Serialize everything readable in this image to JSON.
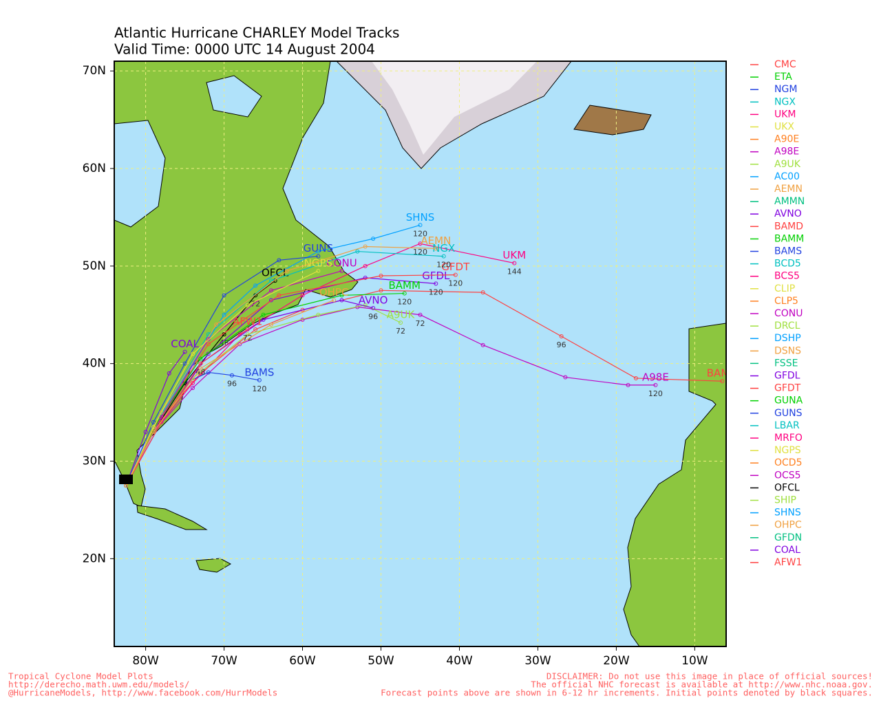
{
  "map": {
    "title": [
      "Atlantic Hurricane CHARLEY Model Tracks",
      "Valid Time: 0000 UTC 14 August 2004"
    ],
    "lon_range": [
      -84,
      -6
    ],
    "lat_range": [
      11,
      71
    ],
    "xticks": [
      {
        "value": -80,
        "label": "80W"
      },
      {
        "value": -70,
        "label": "70W"
      },
      {
        "value": -60,
        "label": "60W"
      },
      {
        "value": -50,
        "label": "50W"
      },
      {
        "value": -40,
        "label": "40W"
      },
      {
        "value": -30,
        "label": "30W"
      },
      {
        "value": -20,
        "label": "20W"
      },
      {
        "value": -10,
        "label": "10W"
      }
    ],
    "yticks": [
      {
        "value": 20,
        "label": "20N"
      },
      {
        "value": 30,
        "label": "30N"
      },
      {
        "value": 40,
        "label": "40N"
      },
      {
        "value": 50,
        "label": "50N"
      },
      {
        "value": 60,
        "label": "60N"
      },
      {
        "value": 70,
        "label": "70N"
      }
    ],
    "grid": true,
    "legend": [
      {
        "name": "CMC",
        "color": "#ff4040"
      },
      {
        "name": "ETA",
        "color": "#00d000"
      },
      {
        "name": "NGM",
        "color": "#2040e0"
      },
      {
        "name": "NGX",
        "color": "#00c0c0"
      },
      {
        "name": "UKM",
        "color": "#ff0080"
      },
      {
        "name": "UKX",
        "color": "#e0e040"
      },
      {
        "name": "A90E",
        "color": "#ff8020"
      },
      {
        "name": "A98E",
        "color": "#c000c0"
      },
      {
        "name": "A9UK",
        "color": "#a0e040"
      },
      {
        "name": "AC00",
        "color": "#00a0ff"
      },
      {
        "name": "AEMN",
        "color": "#f0a040"
      },
      {
        "name": "AMMN",
        "color": "#00c080"
      },
      {
        "name": "AVNO",
        "color": "#8000e0"
      },
      {
        "name": "BAMD",
        "color": "#ff4040"
      },
      {
        "name": "BAMM",
        "color": "#00d000"
      },
      {
        "name": "BAMS",
        "color": "#2040e0"
      },
      {
        "name": "BCD5",
        "color": "#00c0c0"
      },
      {
        "name": "BCS5",
        "color": "#ff0080"
      },
      {
        "name": "CLIP",
        "color": "#e0e040"
      },
      {
        "name": "CLP5",
        "color": "#ff8020"
      },
      {
        "name": "CONU",
        "color": "#c000c0"
      },
      {
        "name": "DRCL",
        "color": "#a0e040"
      },
      {
        "name": "DSHP",
        "color": "#00a0ff"
      },
      {
        "name": "DSNS",
        "color": "#f0a040"
      },
      {
        "name": "FSSE",
        "color": "#00c080"
      },
      {
        "name": "GFDL",
        "color": "#8000e0"
      },
      {
        "name": "GFDT",
        "color": "#ff4040"
      },
      {
        "name": "GUNA",
        "color": "#00d000"
      },
      {
        "name": "GUNS",
        "color": "#2040e0"
      },
      {
        "name": "LBAR",
        "color": "#00c0c0"
      },
      {
        "name": "MRFO",
        "color": "#ff0080"
      },
      {
        "name": "NGPS",
        "color": "#e0e040"
      },
      {
        "name": "OCD5",
        "color": "#ff8020"
      },
      {
        "name": "OCS5",
        "color": "#c000c0"
      },
      {
        "name": "OFCL",
        "color": "#000000"
      },
      {
        "name": "SHIP",
        "color": "#a0e040"
      },
      {
        "name": "SHNS",
        "color": "#00a0ff"
      },
      {
        "name": "OHPC",
        "color": "#f0a040"
      },
      {
        "name": "GFDN",
        "color": "#00c080"
      },
      {
        "name": "COAL",
        "color": "#8000e0"
      },
      {
        "name": "AFW1",
        "color": "#ff4040"
      }
    ],
    "tracks": [
      {
        "name": "UKM",
        "color": "#ff0080",
        "points": [
          [
            -82.5,
            27.5
          ],
          [
            -79,
            33
          ],
          [
            -74,
            38
          ],
          [
            -68,
            43
          ],
          [
            -60,
            47
          ],
          [
            -52,
            50
          ],
          [
            -45,
            52.3
          ],
          [
            -33,
            50.3
          ]
        ],
        "hour_labels": [
          null,
          null,
          null,
          null,
          null,
          null,
          "120",
          "144"
        ]
      },
      {
        "name": "BAMD",
        "color": "#ff4040",
        "points": [
          [
            -82.5,
            27.5
          ],
          [
            -79,
            33.5
          ],
          [
            -73,
            39
          ],
          [
            -66,
            43.5
          ],
          [
            -60,
            45.5
          ],
          [
            -50,
            47.5
          ],
          [
            -37,
            47.3
          ],
          [
            -27,
            42.8
          ],
          [
            -17.5,
            38.5
          ],
          [
            -6.5,
            38.2
          ]
        ],
        "hour_labels": [
          null,
          null,
          null,
          null,
          null,
          null,
          null,
          "96",
          null,
          null
        ]
      },
      {
        "name": "A98E",
        "color": "#c000c0",
        "points": [
          [
            -82.5,
            27.5
          ],
          [
            -79,
            33
          ],
          [
            -74,
            37.5
          ],
          [
            -68,
            42
          ],
          [
            -60,
            44.5
          ],
          [
            -53,
            45.8
          ],
          [
            -45,
            45
          ],
          [
            -37,
            41.9
          ],
          [
            -26.5,
            38.6
          ],
          [
            -18.5,
            37.8
          ],
          [
            -15,
            37.8
          ]
        ],
        "hour_labels": [
          null,
          null,
          null,
          null,
          null,
          null,
          "72",
          null,
          null,
          null,
          "120"
        ]
      },
      {
        "name": "BAMS",
        "color": "#2040e0",
        "points": [
          [
            -82.5,
            27.5
          ],
          [
            -79,
            33
          ],
          [
            -75,
            38
          ],
          [
            -72,
            39.1
          ],
          [
            -69,
            38.8
          ],
          [
            -65.5,
            38.3
          ]
        ],
        "hour_labels": [
          null,
          null,
          null,
          null,
          "96",
          "120"
        ]
      },
      {
        "name": "SHNS",
        "color": "#00a0ff",
        "points": [
          [
            -82.5,
            27.5
          ],
          [
            -79,
            33.5
          ],
          [
            -74,
            40
          ],
          [
            -70,
            45
          ],
          [
            -66,
            48
          ],
          [
            -58,
            51.5
          ],
          [
            -51,
            52.8
          ],
          [
            -45,
            54.2
          ]
        ],
        "hour_labels": [
          null,
          null,
          null,
          null,
          null,
          null,
          null,
          "120"
        ]
      },
      {
        "name": "GUNS",
        "color": "#2040e0",
        "points": [
          [
            -82.5,
            27.5
          ],
          [
            -79,
            34
          ],
          [
            -75,
            40
          ],
          [
            -70,
            47
          ],
          [
            -63,
            50.6
          ],
          [
            -58,
            51
          ]
        ],
        "hour_labels": [
          null,
          null,
          null,
          null,
          null,
          null
        ]
      },
      {
        "name": "OFCL",
        "color": "#000000",
        "points": [
          [
            -82.5,
            27.5
          ],
          [
            -79,
            33
          ],
          [
            -75,
            38
          ],
          [
            -70,
            43
          ],
          [
            -66,
            47
          ],
          [
            -63.5,
            48.5
          ]
        ],
        "hour_labels": [
          null,
          null,
          null,
          "48",
          "72",
          null
        ]
      },
      {
        "name": "A9UK",
        "color": "#a0e040",
        "points": [
          [
            -82.5,
            27.5
          ],
          [
            -79,
            33
          ],
          [
            -74,
            38.5
          ],
          [
            -67,
            43
          ],
          [
            -58,
            45
          ],
          [
            -52,
            46
          ],
          [
            -47.5,
            44.2
          ]
        ],
        "hour_labels": [
          null,
          null,
          null,
          null,
          null,
          null,
          "72"
        ]
      },
      {
        "name": "AVNO",
        "color": "#8000e0",
        "points": [
          [
            -82.5,
            27.5
          ],
          [
            -78,
            34
          ],
          [
            -73,
            40
          ],
          [
            -65,
            44.5
          ],
          [
            -55,
            46.5
          ],
          [
            -51,
            45.7
          ]
        ],
        "hour_labels": [
          null,
          null,
          null,
          null,
          null,
          "96"
        ]
      },
      {
        "name": "GFDL",
        "color": "#8000e0",
        "points": [
          [
            -82.5,
            27.5
          ],
          [
            -78,
            34
          ],
          [
            -72,
            41
          ],
          [
            -64,
            46.5
          ],
          [
            -52,
            48.8
          ],
          [
            -43,
            48.2
          ]
        ],
        "hour_labels": [
          null,
          null,
          null,
          null,
          null,
          "120"
        ]
      },
      {
        "name": "GFDT",
        "color": "#ff4040",
        "points": [
          [
            -82.5,
            27.5
          ],
          [
            -78,
            34.5
          ],
          [
            -72,
            42
          ],
          [
            -63,
            47
          ],
          [
            -50,
            49
          ],
          [
            -40.5,
            49.1
          ]
        ],
        "hour_labels": [
          null,
          null,
          null,
          null,
          null,
          "120"
        ]
      },
      {
        "name": "BAMM",
        "color": "#00d000",
        "points": [
          [
            -82.5,
            27.5
          ],
          [
            -78.5,
            34
          ],
          [
            -73,
            40.5
          ],
          [
            -65,
            45
          ],
          [
            -55,
            47
          ],
          [
            -47,
            47.2
          ]
        ],
        "hour_labels": [
          null,
          null,
          null,
          null,
          null,
          "120"
        ]
      },
      {
        "name": "NGX",
        "color": "#00c0c0",
        "points": [
          [
            -82.5,
            27.5
          ],
          [
            -78,
            35
          ],
          [
            -72,
            43
          ],
          [
            -64,
            48.5
          ],
          [
            -53,
            51.5
          ],
          [
            -42,
            51
          ]
        ],
        "hour_labels": [
          null,
          null,
          null,
          null,
          null,
          "120"
        ]
      },
      {
        "name": "AEMN",
        "color": "#f0a040",
        "points": [
          [
            -82.5,
            27.5
          ],
          [
            -78,
            35
          ],
          [
            -71,
            44
          ],
          [
            -62,
            49.5
          ],
          [
            -52,
            52
          ],
          [
            -43,
            51.8
          ]
        ],
        "hour_labels": [
          null,
          null,
          null,
          null,
          null,
          null
        ]
      },
      {
        "name": "CONU",
        "color": "#c000c0",
        "points": [
          [
            -82.5,
            27.5
          ],
          [
            -78,
            34.5
          ],
          [
            -72,
            42.5
          ],
          [
            -64,
            47.5
          ],
          [
            -55,
            49.5
          ]
        ],
        "hour_labels": [
          null,
          null,
          null,
          null,
          null
        ]
      },
      {
        "name": "COAL",
        "color": "#8000e0",
        "points": [
          [
            -82.5,
            27.5
          ],
          [
            -80,
            33
          ],
          [
            -77,
            39
          ],
          [
            -75,
            41.2
          ]
        ],
        "hour_labels": [
          null,
          null,
          null,
          null
        ]
      },
      {
        "name": "AFW1",
        "color": "#ff4040",
        "points": [
          [
            -82.5,
            27.5
          ],
          [
            -78,
            34
          ],
          [
            -73,
            40
          ],
          [
            -67,
            43.5
          ]
        ],
        "hour_labels": [
          null,
          null,
          "48",
          "72"
        ]
      },
      {
        "name": "NGPS",
        "color": "#e0e040",
        "points": [
          [
            -82.5,
            27.5
          ],
          [
            -79,
            33.5
          ],
          [
            -74,
            41
          ],
          [
            -67,
            46
          ],
          [
            -58,
            49.5
          ]
        ],
        "hour_labels": [
          null,
          null,
          null,
          null,
          null
        ]
      },
      {
        "name": "OHPC",
        "color": "#f0a040",
        "points": [
          [
            -82.5,
            27.5
          ],
          [
            -79,
            33
          ],
          [
            -73,
            39.5
          ],
          [
            -64,
            44
          ],
          [
            -56,
            46.5
          ]
        ],
        "hour_labels": [
          null,
          null,
          null,
          null,
          null
        ]
      }
    ],
    "footer_left": [
      "Tropical Cyclone Model Plots",
      "http://derecho.math.uwm.edu/models/",
      "@HurricaneModels, http://www.facebook.com/HurrModels"
    ],
    "footer_right": [
      "DISCLAIMER: Do not use this image in place of official sources!",
      "The official NHC forecast is available at http://www.nhc.noaa.gov.",
      "Forecast points above are shown in 6-12 hr increments. Initial points denoted by black squares."
    ]
  }
}
